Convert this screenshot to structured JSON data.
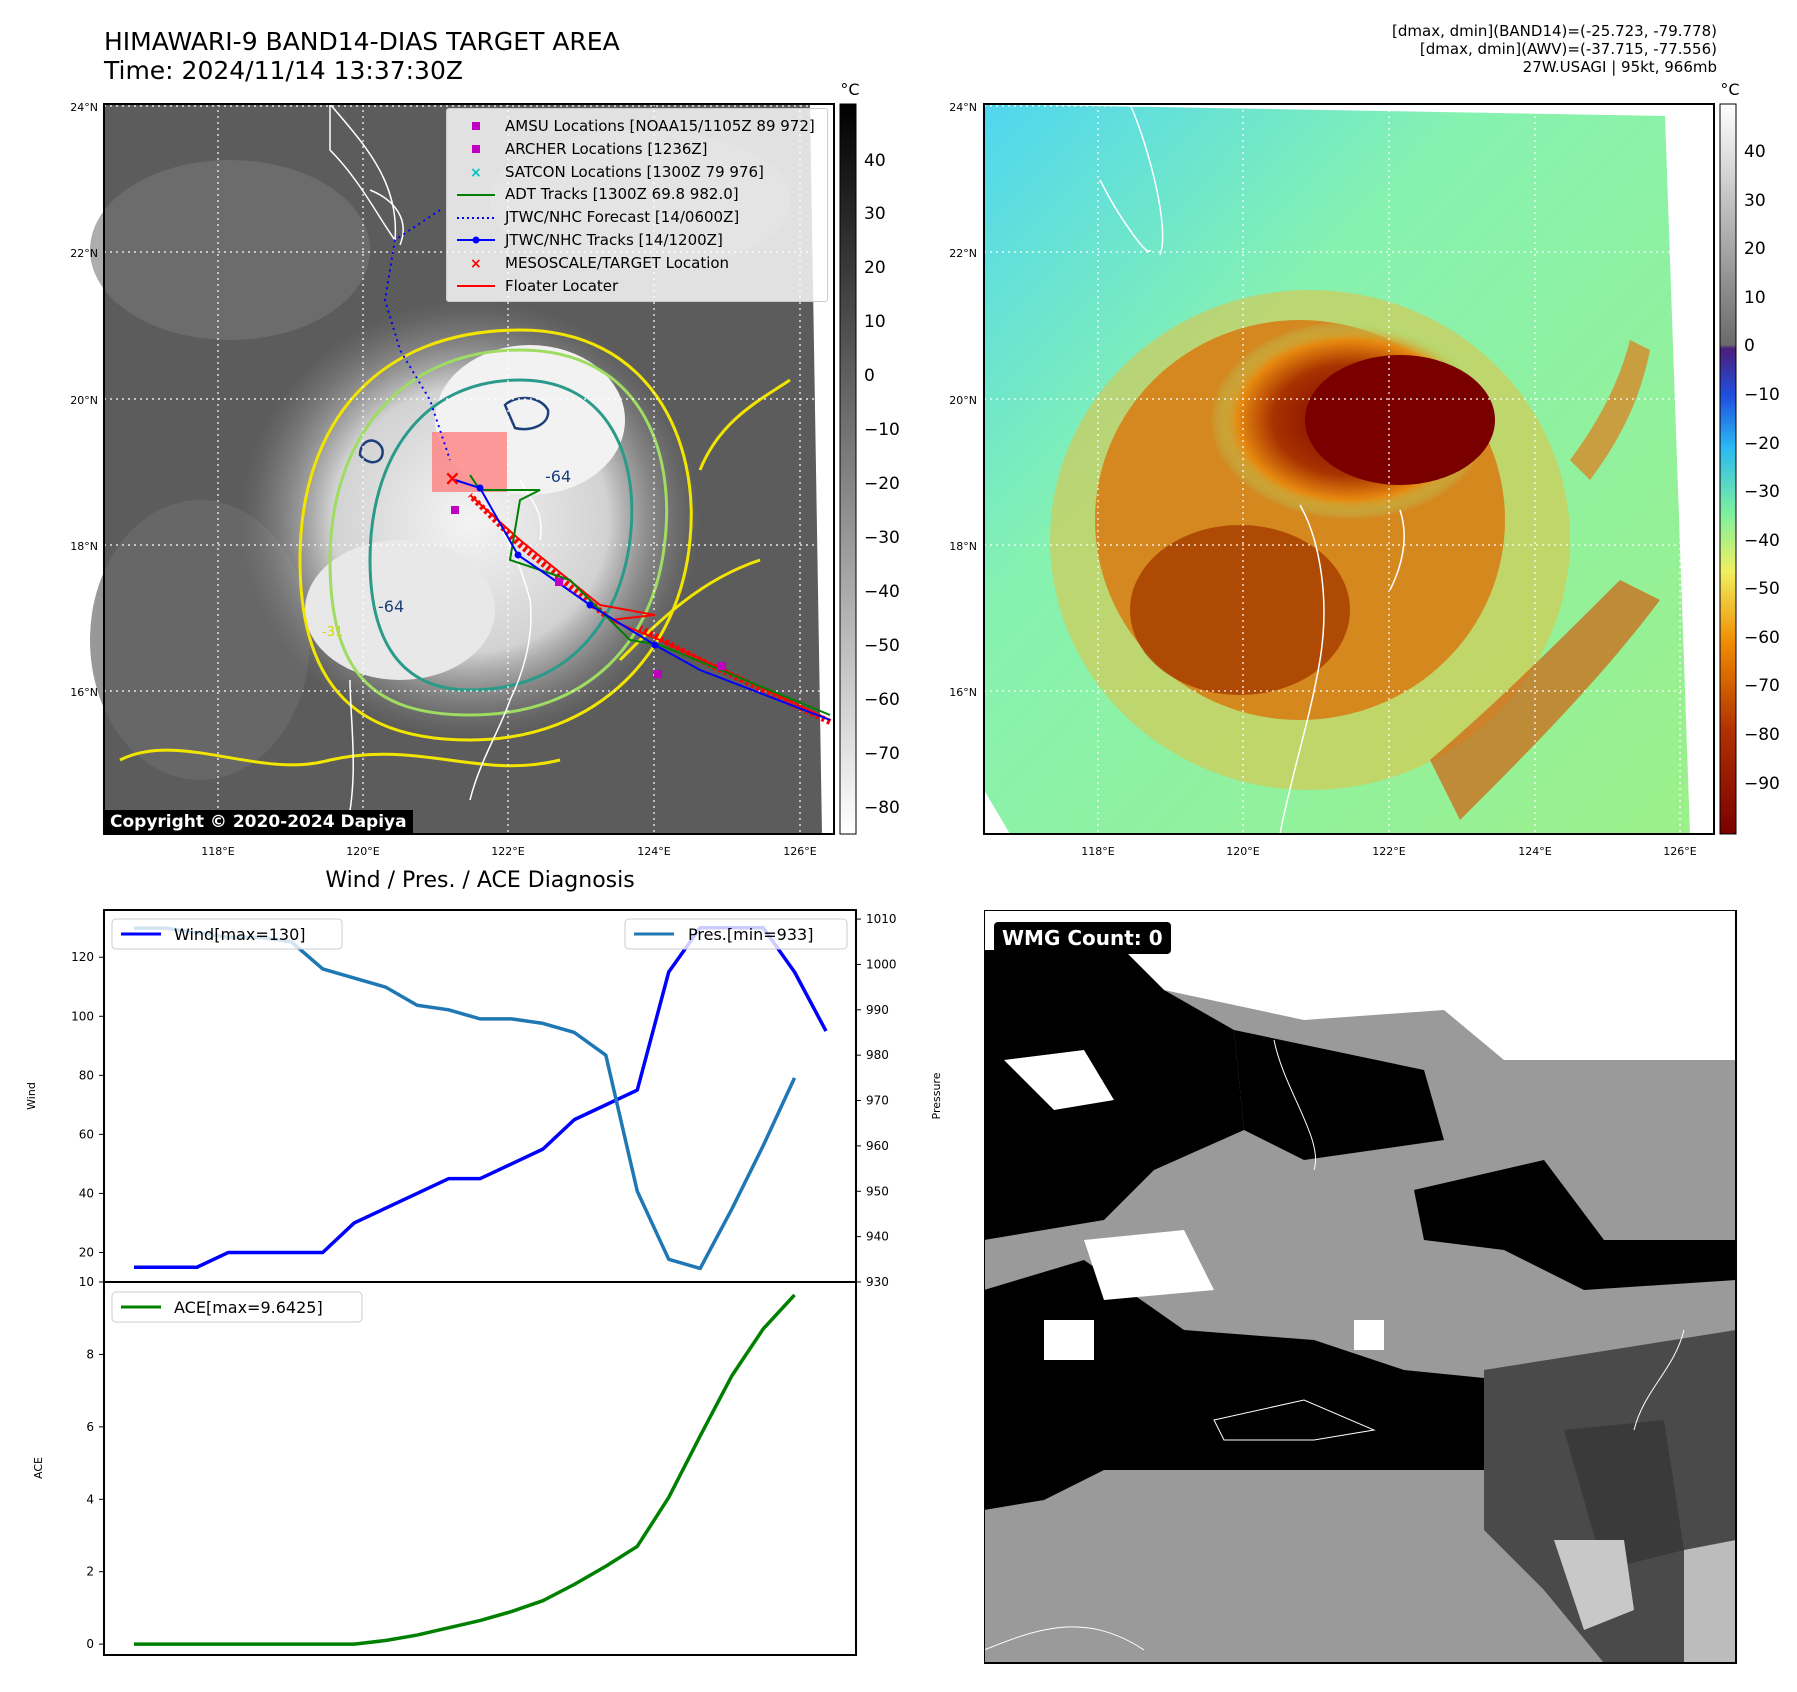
{
  "header": {
    "title_line1": "HIMAWARI-9 BAND14-DIAS TARGET AREA",
    "title_line2": "Time: 2024/11/14 13:37:30Z",
    "info_line1": "[dmax, dmin](BAND14)=(-25.723, -79.778)",
    "info_line2": "[dmax, dmin](AWV)=(-37.715, -77.556)",
    "info_line3": "27W.USAGI | 95kt, 966mb"
  },
  "colorbar_unit": "°C",
  "map": {
    "lat_ticks": [
      "24°N",
      "22°N",
      "20°N",
      "18°N",
      "16°N"
    ],
    "lon_ticks": [
      "118°E",
      "120°E",
      "122°E",
      "124°E",
      "126°E"
    ],
    "contour_labels": [
      "-64",
      "-64",
      "-31"
    ],
    "copyright": "Copyright © 2020-2024 Dapiya"
  },
  "legend_items": [
    {
      "label": "AMSU Locations [NOAA15/1105Z 89 972]",
      "marker": "square",
      "color": "#c000c0"
    },
    {
      "label": "ARCHER Locations [1236Z]",
      "marker": "square",
      "color": "#c000c0"
    },
    {
      "label": "SATCON Locations [1300Z 79 976]",
      "marker": "x",
      "color": "#00c0c0"
    },
    {
      "label": "ADT Tracks [1300Z 69.8 982.0]",
      "marker": "line",
      "color": "#008000"
    },
    {
      "label": "JTWC/NHC Forecast [14/0600Z]",
      "marker": "dotted",
      "color": "#0000ff"
    },
    {
      "label": "JTWC/NHC Tracks [14/1200Z]",
      "marker": "dotline",
      "color": "#0000ff"
    },
    {
      "label": "MESOSCALE/TARGET Location",
      "marker": "x",
      "color": "#ff0000"
    },
    {
      "label": "Floater Locater",
      "marker": "line",
      "color": "#ff0000"
    }
  ],
  "colorbar_gray_ticks": [
    "40",
    "30",
    "20",
    "10",
    "0",
    "−10",
    "−20",
    "−30",
    "−40",
    "−50",
    "−60",
    "−70",
    "−80"
  ],
  "colorbar_color_ticks": [
    "40",
    "30",
    "20",
    "10",
    "0",
    "−10",
    "−20",
    "−30",
    "−40",
    "−50",
    "−60",
    "−70",
    "−80",
    "−90"
  ],
  "wmg": {
    "label": "WMG Count: 0"
  },
  "chart_data": [
    {
      "type": "line",
      "title": "Wind / Pres. / ACE Diagnosis",
      "ylabel": "Wind",
      "y2label": "Pressure",
      "ylim": [
        10,
        136
      ],
      "y2lim": [
        930,
        1012
      ],
      "yticks": [
        20,
        40,
        60,
        80,
        100,
        120
      ],
      "y2ticks": [
        930,
        940,
        950,
        960,
        970,
        980,
        990,
        1000,
        1010
      ],
      "x": [
        0,
        1,
        2,
        3,
        4,
        5,
        6,
        7,
        8,
        9,
        10,
        11,
        12,
        13,
        14,
        15,
        16,
        17,
        18,
        19,
        20,
        21,
        22
      ],
      "series": [
        {
          "name": "Wind[max=130]",
          "color": "#0000ff",
          "values": [
            15,
            15,
            15,
            20,
            20,
            20,
            20,
            30,
            35,
            40,
            45,
            45,
            50,
            55,
            65,
            70,
            75,
            115,
            130,
            130,
            130,
            115,
            95
          ]
        },
        {
          "name": "Pres.[min=933]",
          "color": "#1f77b4",
          "axis": "right",
          "values": [
            1008,
            1008,
            1007,
            1006,
            1006,
            1005,
            999,
            997,
            995,
            991,
            990,
            988,
            988,
            987,
            985,
            980,
            950,
            935,
            933,
            946,
            960,
            975,
            null
          ]
        }
      ]
    },
    {
      "type": "line",
      "ylabel": "ACE",
      "ylim": [
        -0.3,
        10
      ],
      "yticks": [
        0,
        2,
        4,
        6,
        8,
        10
      ],
      "x": [
        0,
        1,
        2,
        3,
        4,
        5,
        6,
        7,
        8,
        9,
        10,
        11,
        12,
        13,
        14,
        15,
        16,
        17,
        18,
        19,
        20,
        21,
        22
      ],
      "series": [
        {
          "name": "ACE[max=9.6425]",
          "color": "#008000",
          "values": [
            0,
            0,
            0,
            0,
            0,
            0,
            0,
            0,
            0.1,
            0.25,
            0.45,
            0.65,
            0.9,
            1.2,
            1.65,
            2.15,
            2.7,
            4.05,
            5.75,
            7.4,
            8.7,
            9.6425,
            null
          ]
        }
      ]
    }
  ]
}
